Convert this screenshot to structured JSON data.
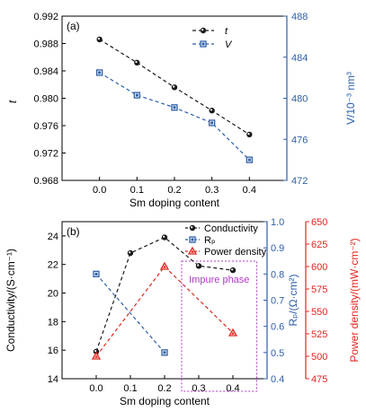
{
  "colors": {
    "black": "#1a1a1a",
    "blue": "#2e5fa8",
    "red": "#e0261f",
    "purple": "#b338c9"
  },
  "chart_data": [
    {
      "type": "line",
      "panel": "(a)",
      "xlabel": "Sm doping content",
      "x": [
        0.0,
        0.1,
        0.2,
        0.3,
        0.4
      ],
      "xticks": [
        "0.0",
        "0.1",
        "0.2",
        "0.3",
        "0.4"
      ],
      "xlim": [
        -0.1,
        0.5
      ],
      "left_axis": {
        "label": "t",
        "lim": [
          0.968,
          0.992
        ],
        "ticks": [
          "0.968",
          "0.972",
          "0.976",
          "0.980",
          "0.984",
          "0.988",
          "0.992"
        ],
        "tick_values": [
          0.968,
          0.972,
          0.976,
          0.98,
          0.984,
          0.988,
          0.992
        ]
      },
      "right_axis": {
        "label": "V/10⁻³ nm³",
        "lim": [
          472,
          488
        ],
        "ticks": [
          "472",
          "476",
          "480",
          "484",
          "488"
        ],
        "tick_values": [
          472,
          476,
          480,
          484,
          488
        ]
      },
      "series": [
        {
          "name": "t",
          "axis": "left",
          "marker": "circle",
          "color": "#1a1a1a",
          "values": [
            0.9886,
            0.9852,
            0.9816,
            0.9782,
            0.9747
          ]
        },
        {
          "name": "V",
          "axis": "right",
          "marker": "square",
          "color": "#2e5fa8",
          "values": [
            482.5,
            480.3,
            479.1,
            477.6,
            474.0
          ]
        }
      ],
      "legend": "top-right"
    },
    {
      "type": "line",
      "panel": "(b)",
      "xlabel": "Sm doping content",
      "x_ticks_positions": [
        0.0,
        0.1,
        0.2,
        0.3,
        0.4
      ],
      "xticks": [
        "0.0",
        "0.1",
        "0.2",
        "0.3",
        "0.4"
      ],
      "xlim": [
        -0.1,
        0.5
      ],
      "left_axis": {
        "label": "Conductivity/(S·cm⁻¹)",
        "lim": [
          14,
          25
        ],
        "ticks": [
          "14",
          "16",
          "18",
          "20",
          "22",
          "24"
        ],
        "tick_values": [
          14,
          16,
          18,
          20,
          22,
          24
        ]
      },
      "right_axis_1": {
        "label": "Rₚ/(Ω·cm²)",
        "lim": [
          0.4,
          1.0
        ],
        "ticks": [
          "0.4",
          "0.5",
          "0.6",
          "0.7",
          "0.8",
          "0.9",
          "1.0"
        ],
        "tick_values": [
          0.4,
          0.5,
          0.6,
          0.7,
          0.8,
          0.9,
          1.0
        ]
      },
      "right_axis_2": {
        "label": "Power density/(mW·cm⁻²)",
        "lim": [
          475,
          650
        ],
        "ticks": [
          "475",
          "500",
          "525",
          "550",
          "575",
          "600",
          "625",
          "650"
        ],
        "tick_values": [
          475,
          500,
          525,
          550,
          575,
          600,
          625,
          650
        ]
      },
      "series": [
        {
          "name": "Conductivity",
          "axis": "left",
          "marker": "circle",
          "color": "#1a1a1a",
          "x": [
            0.0,
            0.1,
            0.2,
            0.3,
            0.4
          ],
          "values": [
            15.9,
            22.8,
            23.9,
            21.9,
            21.6
          ]
        },
        {
          "name": "Rₚ",
          "axis": "right1",
          "marker": "square",
          "color": "#2e5fa8",
          "x": [
            0.0,
            0.2
          ],
          "values": [
            0.8,
            0.5
          ]
        },
        {
          "name": "Power density",
          "axis": "right2",
          "marker": "triangle",
          "color": "#e0261f",
          "x": [
            0.0,
            0.2,
            0.4
          ],
          "values": [
            500,
            600,
            526
          ]
        }
      ],
      "annotation": "Impure phase",
      "annotation_x_range": [
        0.25,
        0.47
      ],
      "legend": "top-right"
    }
  ]
}
